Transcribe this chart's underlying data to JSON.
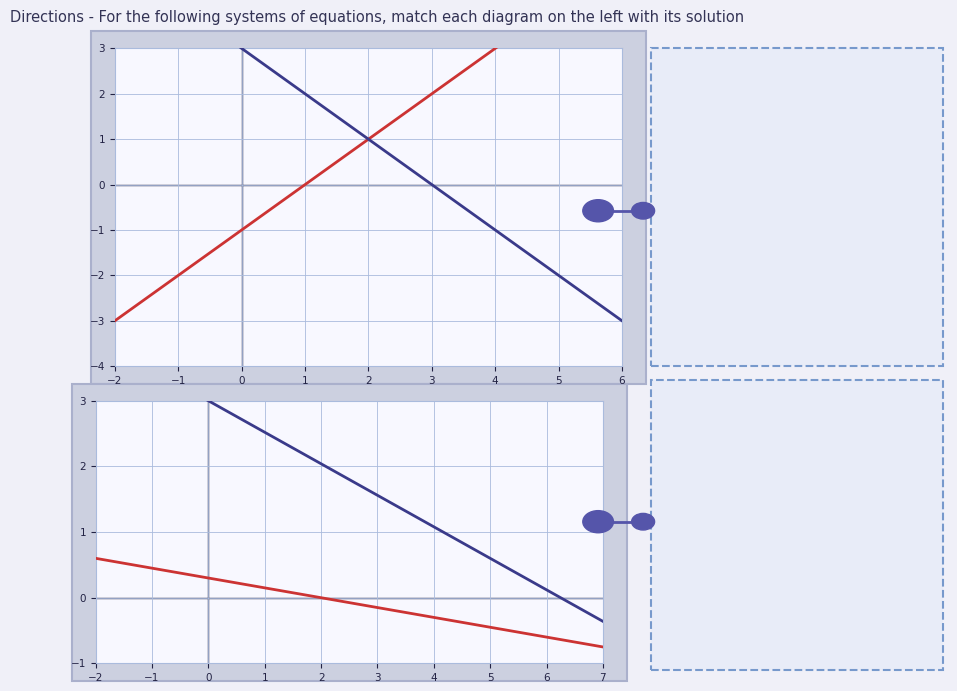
{
  "title": "Directions - For the following systems of equations, match each diagram on the left with its solution",
  "title_fontsize": 10.5,
  "title_color": "#333355",
  "page_bg": "#f0f0f8",
  "outer_box_color": "#aab0cc",
  "outer_box_bg": "#ccd0e0",
  "inner_bg": "#f8f8ff",
  "graph1": {
    "xlim": [
      -2,
      6
    ],
    "ylim": [
      -4,
      3
    ],
    "xticks": [
      -2,
      -1,
      0,
      1,
      2,
      3,
      4,
      5,
      6
    ],
    "yticks": [
      -4,
      -3,
      -2,
      -1,
      0,
      1,
      2,
      3
    ],
    "line_red_slope": 1,
    "line_red_intercept": -1,
    "line_blue_slope": -1,
    "line_blue_intercept": 3,
    "line_red_color": "#cc3333",
    "line_blue_color": "#3a3a8a",
    "grid_color": "#aabbdd",
    "axis_color": "#222244"
  },
  "graph2": {
    "xlim": [
      -2,
      7
    ],
    "ylim": [
      -1,
      3
    ],
    "xticks": [
      -2,
      -1,
      0,
      1,
      2,
      3,
      4,
      5,
      6,
      7
    ],
    "yticks": [
      -1,
      0,
      1,
      2,
      3
    ],
    "line_red_slope": -0.15,
    "line_red_intercept": 0.3,
    "line_blue_slope": -0.48,
    "line_blue_intercept": 3.0,
    "line_red_color": "#cc3333",
    "line_blue_color": "#3a3a8a",
    "grid_color": "#aabbdd",
    "axis_color": "#222244"
  },
  "connector_dot_color": "#5555aa",
  "connector_line_color": "#5555aa",
  "dashed_box_edge": "#7799cc",
  "dashed_box_bg": "#e8ecf8"
}
